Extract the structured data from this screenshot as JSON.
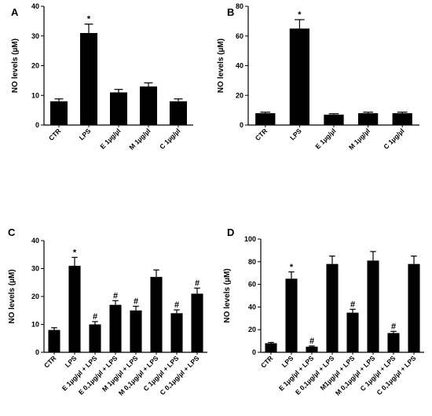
{
  "chart_data": [
    {
      "type": "bar",
      "panel": "A",
      "ylabel": "NO levels (µM)",
      "ylim": [
        0,
        40
      ],
      "yticks": [
        0,
        10,
        20,
        30,
        40
      ],
      "categories": [
        "CTR",
        "LPS",
        "E 1µg/µl",
        "M 1µg/µl",
        "C 1µg/µl"
      ],
      "values": [
        8,
        31,
        11,
        13,
        8
      ],
      "errors": [
        0.8,
        3,
        1,
        1.2,
        0.8
      ],
      "significance": [
        "",
        "*",
        "",
        "",
        ""
      ]
    },
    {
      "type": "bar",
      "panel": "B",
      "ylabel": "NO levels (µM)",
      "ylim": [
        0,
        80
      ],
      "yticks": [
        0,
        20,
        40,
        60,
        80
      ],
      "categories": [
        "CTR",
        "LPS",
        "E 1µg/µl",
        "M 1µg/µl",
        "C 1µg/µl"
      ],
      "values": [
        8,
        65,
        7,
        8,
        8
      ],
      "errors": [
        0.7,
        6,
        0.6,
        0.7,
        0.7
      ],
      "significance": [
        "",
        "*",
        "",
        "",
        ""
      ]
    },
    {
      "type": "bar",
      "panel": "C",
      "ylabel": "NO levels (µM)",
      "ylim": [
        0,
        40
      ],
      "yticks": [
        0,
        10,
        20,
        30,
        40
      ],
      "categories": [
        "CTR",
        "LPS",
        "E 1µg/µl + LPS",
        "E 0,1µg/µl + LPS",
        "M 1µg/µl + LPS",
        "M 0,1µg/µl + LPS",
        "C 1µg/µl + LPS",
        "C 0,1µg/µl + LPS"
      ],
      "values": [
        8,
        31,
        10,
        17,
        15,
        27,
        14,
        21
      ],
      "errors": [
        0.8,
        3,
        1,
        1.5,
        1.5,
        2.5,
        1.2,
        2
      ],
      "significance": [
        "",
        "*",
        "#",
        "#",
        "#",
        "",
        "#",
        "#"
      ]
    },
    {
      "type": "bar",
      "panel": "D",
      "ylabel": "NO levels (µM)",
      "ylim": [
        0,
        100
      ],
      "yticks": [
        0,
        20,
        40,
        60,
        80,
        100
      ],
      "categories": [
        "CTR",
        "LPS",
        "E 1µg/µl + LPS",
        "E 0,1µg/µl + LPS",
        "M1µg/µl + LPS",
        "M 0,1µg/µl + LPS",
        "C 1µg/µl + LPS",
        "C 0,1µg/µl + LPS"
      ],
      "values": [
        8,
        65,
        5,
        78,
        35,
        81,
        17,
        78
      ],
      "errors": [
        0.7,
        6,
        0.6,
        7,
        3,
        8,
        1.5,
        7
      ],
      "significance": [
        "",
        "*",
        "#",
        "",
        "#",
        "",
        "#",
        ""
      ]
    }
  ]
}
